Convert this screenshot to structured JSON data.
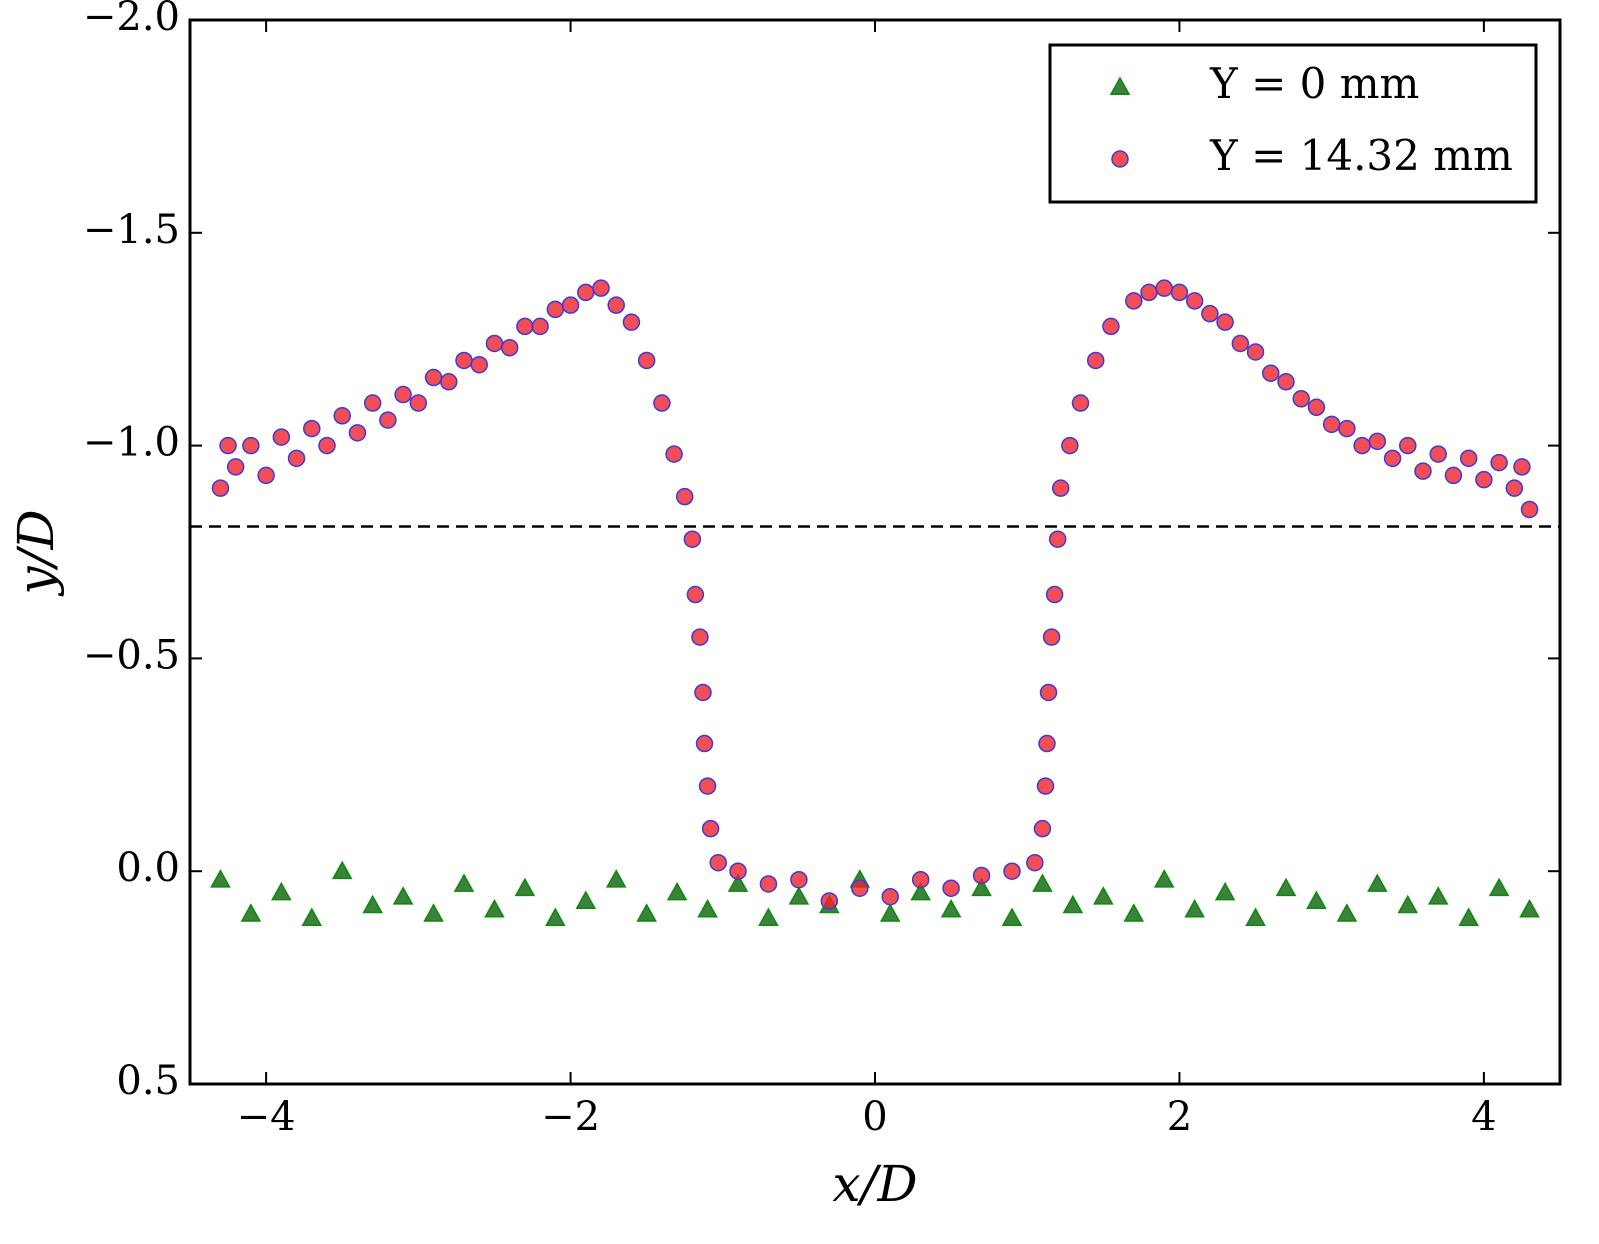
{
  "chart_data": {
    "type": "scatter",
    "xlabel": "x/D",
    "ylabel": "y/D",
    "xlim": [
      -4.5,
      4.5
    ],
    "ylim": [
      -2.0,
      0.5
    ],
    "y_inverted": true,
    "xticks": [
      {
        "value": -4,
        "label": "−4"
      },
      {
        "value": -2,
        "label": "−2"
      },
      0,
      2,
      4
    ],
    "yticks": [
      {
        "value": -2.0,
        "label": "−2.0"
      },
      {
        "value": -1.5,
        "label": "−1.5"
      },
      {
        "value": -1.0,
        "label": "−1.0"
      },
      {
        "value": -0.5,
        "label": "−0.5"
      },
      {
        "value": 0.0,
        "label": "0.0"
      },
      0.5
    ],
    "legend": "upper right",
    "reference_line": {
      "y": -0.81,
      "style": "dashed",
      "color": "#000000"
    },
    "series": [
      {
        "name": "Y = 0 mm",
        "marker": "triangle",
        "color": "#1a6b1a",
        "edgecolor": "#0b8a0b",
        "x": [
          -4.3,
          -4.1,
          -3.9,
          -3.7,
          -3.5,
          -3.3,
          -3.1,
          -2.9,
          -2.7,
          -2.5,
          -2.3,
          -2.1,
          -1.9,
          -1.7,
          -1.5,
          -1.3,
          -1.1,
          -0.9,
          -0.7,
          -0.5,
          -0.3,
          -0.1,
          0.1,
          0.3,
          0.5,
          0.7,
          0.9,
          1.1,
          1.3,
          1.5,
          1.7,
          1.9,
          2.1,
          2.3,
          2.5,
          2.7,
          2.9,
          3.1,
          3.3,
          3.5,
          3.7,
          3.9,
          4.1,
          4.3
        ],
        "values": [
          0.02,
          0.1,
          0.05,
          0.11,
          0.0,
          0.08,
          0.06,
          0.1,
          0.03,
          0.09,
          0.04,
          0.11,
          0.07,
          0.02,
          0.1,
          0.05,
          0.09,
          0.03,
          0.11,
          0.06,
          0.08,
          0.02,
          0.1,
          0.05,
          0.09,
          0.04,
          0.11,
          0.03,
          0.08,
          0.06,
          0.1,
          0.02,
          0.09,
          0.05,
          0.11,
          0.04,
          0.07,
          0.1,
          0.03,
          0.08,
          0.06,
          0.11,
          0.04,
          0.09
        ]
      },
      {
        "name": "Y = 14.32 mm",
        "marker": "circle",
        "color": "#f0202a",
        "edgecolor": "#3a3adf",
        "x": [
          -4.3,
          -4.25,
          -4.2,
          -4.1,
          -4.0,
          -3.9,
          -3.8,
          -3.7,
          -3.6,
          -3.5,
          -3.4,
          -3.3,
          -3.2,
          -3.1,
          -3.0,
          -2.9,
          -2.8,
          -2.7,
          -2.6,
          -2.5,
          -2.4,
          -2.3,
          -2.2,
          -2.1,
          -2.0,
          -1.9,
          -1.8,
          -1.7,
          -1.6,
          -1.5,
          -1.4,
          -1.32,
          -1.25,
          -1.2,
          -1.18,
          -1.15,
          -1.13,
          -1.12,
          -1.1,
          -1.08,
          -1.03,
          -0.9,
          -0.7,
          -0.5,
          -0.3,
          -0.1,
          0.1,
          0.3,
          0.5,
          0.7,
          0.9,
          1.05,
          1.1,
          1.12,
          1.13,
          1.14,
          1.16,
          1.18,
          1.2,
          1.22,
          1.28,
          1.35,
          1.45,
          1.55,
          1.7,
          1.8,
          1.9,
          2.0,
          2.1,
          2.2,
          2.3,
          2.4,
          2.5,
          2.6,
          2.7,
          2.8,
          2.9,
          3.0,
          3.1,
          3.2,
          3.3,
          3.4,
          3.5,
          3.6,
          3.7,
          3.8,
          3.9,
          4.0,
          4.1,
          4.2,
          4.25,
          4.3
        ],
        "values": [
          -0.9,
          -1.0,
          -0.95,
          -1.0,
          -0.93,
          -1.02,
          -0.97,
          -1.04,
          -1.0,
          -1.07,
          -1.03,
          -1.1,
          -1.06,
          -1.12,
          -1.1,
          -1.16,
          -1.15,
          -1.2,
          -1.19,
          -1.24,
          -1.23,
          -1.28,
          -1.28,
          -1.32,
          -1.33,
          -1.36,
          -1.37,
          -1.33,
          -1.29,
          -1.2,
          -1.1,
          -0.98,
          -0.88,
          -0.78,
          -0.65,
          -0.55,
          -0.42,
          -0.3,
          -0.2,
          -0.1,
          -0.02,
          0.0,
          0.03,
          0.02,
          0.07,
          0.04,
          0.06,
          0.02,
          0.04,
          0.01,
          0.0,
          -0.02,
          -0.1,
          -0.2,
          -0.3,
          -0.42,
          -0.55,
          -0.65,
          -0.78,
          -0.9,
          -1.0,
          -1.1,
          -1.2,
          -1.28,
          -1.34,
          -1.36,
          -1.37,
          -1.36,
          -1.34,
          -1.31,
          -1.29,
          -1.24,
          -1.22,
          -1.17,
          -1.15,
          -1.11,
          -1.09,
          -1.05,
          -1.04,
          -1.0,
          -1.01,
          -0.97,
          -1.0,
          -0.94,
          -0.98,
          -0.93,
          -0.97,
          -0.92,
          -0.96,
          -0.9,
          -0.95,
          -0.85
        ]
      }
    ]
  }
}
